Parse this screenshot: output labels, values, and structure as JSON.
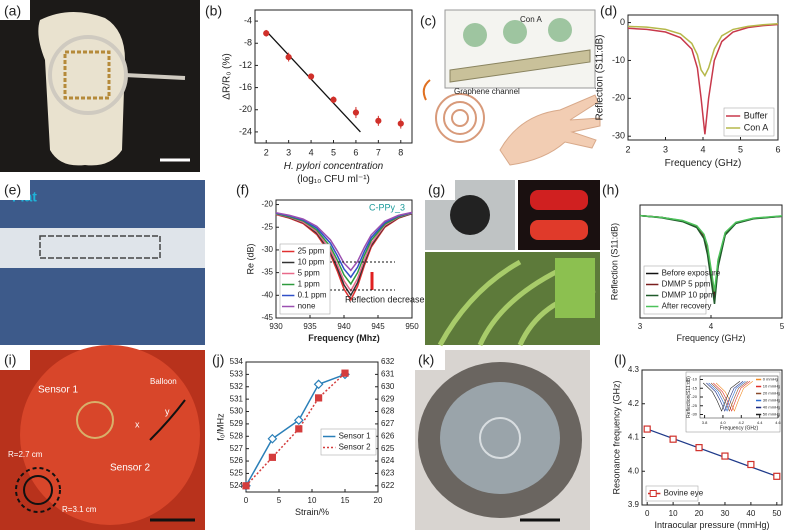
{
  "panel_labels": [
    "(a)",
    "(b)",
    "(c)",
    "(d)",
    "(e)",
    "(f)",
    "(g)",
    "(h)",
    "(i)",
    "(j)",
    "(k)",
    "(l)"
  ],
  "photos": {
    "c": {
      "texts": [
        "Con A",
        "Graphene channel"
      ]
    },
    "e": {
      "texts": [
        "Flat"
      ]
    },
    "i": {
      "texts": [
        "Sensor 1",
        "Balloon",
        "Sensor 2",
        "R=2.7 cm",
        "R=3.1 cm",
        "x",
        "y"
      ]
    }
  },
  "chart_data": [
    {
      "type": "scatter",
      "x_label": [
        "H. pylori concentration",
        "(log₁₀ CFU ml⁻¹)"
      ],
      "y_label": "ΔR/R₀ (%)",
      "x": [
        2,
        3,
        4,
        5,
        6,
        7,
        8
      ],
      "values": [
        -6.2,
        -10.5,
        -14,
        -18.2,
        -20.5,
        -22,
        -22.5
      ],
      "errors": [
        0.6,
        0.8,
        0.5,
        0.6,
        1,
        0.9,
        0.9
      ],
      "color": "#d0302a",
      "fit_line": {
        "x": [
          2,
          6.2
        ],
        "y": [
          -5.8,
          -24
        ],
        "color": "#111"
      },
      "xlim": [
        1.5,
        8.5
      ],
      "xticks": [
        2,
        3,
        4,
        5,
        6,
        7,
        8
      ],
      "ylim": [
        -26,
        -2
      ],
      "yticks": [
        -4,
        -8,
        -12,
        -16,
        -20,
        -24
      ]
    },
    {
      "type": "line",
      "x_label": "Frequency (GHz)",
      "y_label": "Reflection (S11:dB)",
      "x": [
        2,
        2.5,
        3,
        3.4,
        3.7,
        3.85,
        3.95,
        4.05,
        4.15,
        4.3,
        4.5,
        4.8,
        5.2,
        5.6,
        6
      ],
      "series": [
        {
          "name": "Buffer",
          "color": "#c8394b",
          "values": [
            -1.5,
            -1.8,
            -2.5,
            -4,
            -7,
            -12,
            -20,
            -29.5,
            -20,
            -10,
            -5,
            -2.5,
            -1.3,
            -0.8,
            -0.5
          ]
        },
        {
          "name": "Con A",
          "color": "#b5b84a",
          "values": [
            -1,
            -1.2,
            -1.8,
            -3,
            -5.5,
            -8.5,
            -12.5,
            -14,
            -12,
            -7,
            -3.5,
            -1.8,
            -1,
            -0.6,
            -0.3
          ]
        }
      ],
      "legend": "lower right",
      "xlim": [
        2,
        6
      ],
      "xticks": [
        2,
        3,
        4,
        5,
        6
      ],
      "ylim": [
        -31,
        2
      ],
      "yticks": [
        0,
        -10,
        -20,
        -30
      ]
    },
    {
      "type": "line",
      "x_label": "Frequency (Mhz)",
      "y_label": "Re (dB)",
      "annotations": [
        "C-PPy_3",
        "Reflection decrease"
      ],
      "x": [
        930,
        932,
        934,
        936,
        938,
        939,
        940,
        941,
        942,
        943,
        944,
        946,
        948,
        950
      ],
      "series": [
        {
          "name": "25 ppm",
          "color": "#e03030",
          "values": [
            -22.2,
            -23,
            -24.2,
            -26.6,
            -31,
            -34.6,
            -38.6,
            -41,
            -38,
            -33.4,
            -29.4,
            -25,
            -23,
            -22
          ]
        },
        {
          "name": "10 ppm",
          "color": "#333333",
          "values": [
            -22.1,
            -22.9,
            -24,
            -26.3,
            -30.5,
            -33.9,
            -37.7,
            -40,
            -37.2,
            -32.8,
            -29,
            -24.8,
            -22.9,
            -22
          ]
        },
        {
          "name": "5 ppm",
          "color": "#e86a8a",
          "values": [
            -22.1,
            -22.8,
            -23.9,
            -26,
            -30,
            -33.2,
            -36.8,
            -39,
            -36.3,
            -32.2,
            -28.6,
            -24.6,
            -22.8,
            -21.9
          ]
        },
        {
          "name": "1 ppm",
          "color": "#2e9a3e",
          "values": [
            -22,
            -22.7,
            -23.6,
            -25.6,
            -29.3,
            -32.2,
            -35.5,
            -37.5,
            -35,
            -31.2,
            -27.9,
            -24.3,
            -22.7,
            -21.8
          ]
        },
        {
          "name": "0.1 ppm",
          "color": "#3050c8",
          "values": [
            -21.9,
            -22.5,
            -23.4,
            -25.2,
            -28.5,
            -31.2,
            -34.2,
            -36,
            -33.8,
            -30.3,
            -27.3,
            -24,
            -22.5,
            -21.8
          ]
        },
        {
          "name": "none",
          "color": "#9b50b0",
          "values": [
            -21.8,
            -22.4,
            -23.2,
            -24.8,
            -27.8,
            -30.2,
            -32.9,
            -34.5,
            -32.5,
            -29.4,
            -26.7,
            -23.7,
            -22.4,
            -21.7
          ]
        }
      ],
      "legend": "lower left",
      "xlim": [
        930,
        950
      ],
      "xticks": [
        930,
        935,
        940,
        945,
        950
      ],
      "ylim": [
        -45,
        -19
      ],
      "yticks": [
        -20,
        -25,
        -30,
        -35,
        -40,
        -45
      ]
    },
    {
      "type": "line",
      "x_label": "Frequency (GHz)",
      "y_label": "Reflection (S11:dB)",
      "x": [
        3,
        3.3,
        3.6,
        3.8,
        3.9,
        3.95,
        4.0,
        4.05,
        4.1,
        4.2,
        4.35,
        4.6,
        5
      ],
      "series": [
        {
          "name": "Before exposure",
          "color": "#111111",
          "values": [
            -1,
            -1.5,
            -2.5,
            -4,
            -6.5,
            -10,
            -17,
            -24,
            -14,
            -6,
            -3,
            -1.8,
            -1.2
          ]
        },
        {
          "name": "DMMP 5 ppm",
          "color": "#7a1e1e",
          "values": [
            -1,
            -1.5,
            -2.6,
            -4.2,
            -7,
            -11,
            -18,
            -25,
            -15,
            -6.3,
            -3.1,
            -1.8,
            -1.2
          ]
        },
        {
          "name": "DMMP 10 ppm",
          "color": "#1f5a2a",
          "values": [
            -1,
            -1.6,
            -2.7,
            -4.4,
            -7.5,
            -12,
            -19,
            -26,
            -15.5,
            -6.5,
            -3.2,
            -1.9,
            -1.2
          ]
        },
        {
          "name": "After recovery",
          "color": "#4cc25a",
          "values": [
            -1,
            -1.5,
            -2.4,
            -3.9,
            -6.3,
            -9.5,
            -16,
            -22.5,
            -13.5,
            -5.8,
            -2.9,
            -1.7,
            -1.1
          ]
        }
      ],
      "legend": "lower left",
      "xlim": [
        3,
        5
      ],
      "xticks": [
        3,
        4,
        5
      ],
      "ylim": [
        -30,
        2
      ]
    },
    {
      "type": "line",
      "x_label": "Strain/%",
      "y_label": "f₀/MHz",
      "x": [
        0,
        4,
        8,
        11,
        15
      ],
      "series": [
        {
          "name": "Sensor 1",
          "color": "#2a7fb8",
          "marker": "diamond",
          "values": [
            524,
            527.8,
            529.3,
            532.2,
            533
          ]
        },
        {
          "name": "Sensor 2",
          "color": "#d43c3c",
          "marker": "square",
          "dash": true,
          "axis": "y2",
          "values": [
            622,
            624.3,
            626.6,
            629.1,
            631.1
          ]
        }
      ],
      "legend": "right",
      "xlim": [
        0,
        20
      ],
      "xticks": [
        0,
        5,
        10,
        15,
        20
      ],
      "ylim": [
        523.5,
        534
      ],
      "yticks": [
        524,
        525,
        526,
        527,
        528,
        529,
        530,
        531,
        532,
        533,
        534
      ],
      "y2lim": [
        621.5,
        632
      ],
      "y2ticks": [
        622,
        623,
        624,
        625,
        626,
        627,
        628,
        629,
        630,
        631,
        632
      ]
    },
    {
      "type": "scatter",
      "x_label": "Intraocular pressure (mmHg)",
      "y_label": "Resonance frequency (GHz)",
      "x": [
        0,
        10,
        20,
        30,
        40,
        50
      ],
      "series": [
        {
          "name": "Bovine eye",
          "color": "#d0302a",
          "values": [
            4.125,
            4.095,
            4.07,
            4.045,
            4.02,
            3.985
          ]
        }
      ],
      "fit_line": {
        "x": [
          0,
          50
        ],
        "y": [
          4.125,
          3.985
        ],
        "color": "#1f3a8a"
      },
      "legend": "lower left",
      "xlim": [
        -2,
        52
      ],
      "xticks": [
        0,
        10,
        20,
        30,
        40,
        50
      ],
      "ylim": [
        3.9,
        4.3
      ],
      "yticks": [
        3.9,
        {
          "value": 4,
          "label": "4.0"
        },
        4.1,
        4.2,
        4.3
      ]
    },
    {
      "type": "line",
      "x_label": "Frequency (GHz)",
      "y_label": "Reflection(S11:dB)",
      "series": [
        {
          "name": "0 mmHg",
          "color": "#f08a24",
          "x": [
            3.925,
            4.025,
            4.075,
            4.125,
            4.175,
            4.225,
            4.325
          ],
          "values": [
            -12,
            -17,
            -22,
            -28,
            -21,
            -15,
            -11
          ]
        },
        {
          "name": "10 mmHg",
          "color": "#e0302a",
          "x": [
            3.895,
            3.995,
            4.045,
            4.095,
            4.145,
            4.195,
            4.295
          ],
          "values": [
            -12,
            -17,
            -22,
            -28,
            -21,
            -15,
            -11
          ]
        },
        {
          "name": "20 mmHg",
          "color": "#8a4a2a",
          "x": [
            3.87,
            3.97,
            4.02,
            4.07,
            4.12,
            4.17,
            4.27
          ],
          "values": [
            -12,
            -17,
            -22,
            -28,
            -21,
            -15,
            -11
          ]
        },
        {
          "name": "30 mmHg",
          "color": "#2a6ad0",
          "x": [
            3.845,
            3.945,
            3.995,
            4.045,
            4.095,
            4.145,
            4.245
          ],
          "values": [
            -12,
            -17,
            -22,
            -28,
            -21,
            -15,
            -11
          ]
        },
        {
          "name": "40 mmHg",
          "color": "#1a2a80",
          "x": [
            3.82,
            3.92,
            3.97,
            4.02,
            4.07,
            4.12,
            4.22
          ],
          "values": [
            -12,
            -17,
            -22,
            -28,
            -21,
            -15,
            -11
          ]
        },
        {
          "name": "50 mmHg",
          "color": "#222222",
          "x": [
            3.785,
            3.885,
            3.935,
            3.985,
            4.035,
            4.085,
            4.185
          ],
          "values": [
            -12,
            -17,
            -22,
            -28,
            -21,
            -15,
            -11
          ]
        }
      ],
      "legend": "right",
      "xlim": [
        3.75,
        4.6
      ],
      "xticks": [
        3.8,
        {
          "value": 4,
          "label": "4.0"
        },
        4.2,
        4.4,
        4.6
      ],
      "ylim": [
        -32,
        -8
      ],
      "yticks": [
        -10,
        -15,
        -20,
        -25,
        -30
      ]
    }
  ]
}
